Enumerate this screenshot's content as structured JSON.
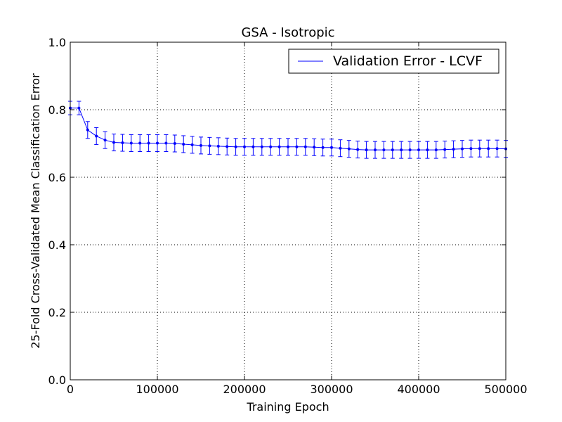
{
  "chart_data": {
    "type": "line",
    "title": "GSA - Isotropic",
    "xlabel": "Training Epoch",
    "ylabel": "25-Fold Cross-Validated Mean Classification Error",
    "xlim": [
      0,
      500000
    ],
    "ylim": [
      0.0,
      1.0
    ],
    "grid": true,
    "grid_style": "dotted",
    "legend_position": "top-right",
    "xticks": [
      0,
      100000,
      200000,
      300000,
      400000,
      500000
    ],
    "xtick_labels": [
      "0",
      "100000",
      "200000",
      "300000",
      "400000",
      "500000"
    ],
    "yticks": [
      0.0,
      0.2,
      0.4,
      0.6,
      0.8,
      1.0
    ],
    "ytick_labels": [
      "0.0",
      "0.2",
      "0.4",
      "0.6",
      "0.8",
      "1.0"
    ],
    "series": [
      {
        "name": "Validation Error - LCVF",
        "color": "#0000ff",
        "marker": "point",
        "x": [
          0,
          10000,
          20000,
          30000,
          40000,
          50000,
          60000,
          70000,
          80000,
          90000,
          100000,
          110000,
          120000,
          130000,
          140000,
          150000,
          160000,
          170000,
          180000,
          190000,
          200000,
          210000,
          220000,
          230000,
          240000,
          250000,
          260000,
          270000,
          280000,
          290000,
          300000,
          310000,
          320000,
          330000,
          340000,
          350000,
          360000,
          370000,
          380000,
          390000,
          400000,
          410000,
          420000,
          430000,
          440000,
          450000,
          460000,
          470000,
          480000,
          490000,
          500000
        ],
        "y": [
          0.805,
          0.805,
          0.74,
          0.722,
          0.71,
          0.703,
          0.702,
          0.701,
          0.701,
          0.701,
          0.701,
          0.701,
          0.7,
          0.698,
          0.696,
          0.694,
          0.693,
          0.692,
          0.691,
          0.69,
          0.69,
          0.69,
          0.69,
          0.69,
          0.69,
          0.69,
          0.69,
          0.69,
          0.689,
          0.688,
          0.688,
          0.686,
          0.684,
          0.682,
          0.681,
          0.681,
          0.681,
          0.681,
          0.681,
          0.681,
          0.681,
          0.681,
          0.681,
          0.682,
          0.683,
          0.684,
          0.685,
          0.685,
          0.685,
          0.685,
          0.684
        ],
        "yerr": [
          0.02,
          0.02,
          0.025,
          0.025,
          0.025,
          0.025,
          0.025,
          0.025,
          0.025,
          0.025,
          0.025,
          0.025,
          0.025,
          0.025,
          0.025,
          0.025,
          0.025,
          0.025,
          0.025,
          0.025,
          0.025,
          0.025,
          0.025,
          0.025,
          0.025,
          0.025,
          0.025,
          0.025,
          0.025,
          0.025,
          0.025,
          0.025,
          0.025,
          0.025,
          0.025,
          0.025,
          0.025,
          0.025,
          0.025,
          0.025,
          0.025,
          0.025,
          0.025,
          0.025,
          0.025,
          0.025,
          0.025,
          0.025,
          0.025,
          0.025,
          0.025
        ]
      }
    ]
  }
}
